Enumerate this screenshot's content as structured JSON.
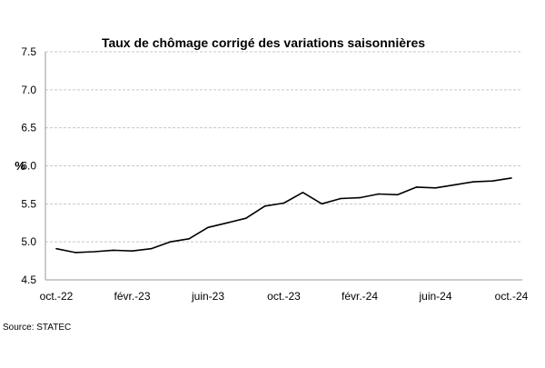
{
  "chart_data": {
    "type": "line",
    "title": "Taux de chômage corrigé des variations saisonnières",
    "ylabel": "%",
    "xlabel": "",
    "ylim": [
      4.5,
      7.5
    ],
    "yticks": [
      "4.5",
      "5.0",
      "5.5",
      "6.0",
      "6.5",
      "7.0",
      "7.5"
    ],
    "xtick_labels": [
      "oct.-22",
      "févr.-23",
      "juin-23",
      "oct.-23",
      "févr.-24",
      "juin-24",
      "oct.-24"
    ],
    "grid": "horizontal dashed",
    "x": [
      "oct.-22",
      "nov.-22",
      "déc.-22",
      "janv.-23",
      "févr.-23",
      "mars-23",
      "avr.-23",
      "mai-23",
      "juin-23",
      "juil.-23",
      "août-23",
      "sept.-23",
      "oct.-23",
      "nov.-23",
      "déc.-23",
      "janv.-24",
      "févr.-24",
      "mars-24",
      "avr.-24",
      "mai-24",
      "juin-24",
      "juil.-24",
      "août-24",
      "sept.-24",
      "oct.-24"
    ],
    "series": [
      {
        "values": [
          4.91,
          4.86,
          4.87,
          4.89,
          4.88,
          4.91,
          5.0,
          5.04,
          5.19,
          5.25,
          5.31,
          5.47,
          5.51,
          5.65,
          5.5,
          5.57,
          5.58,
          5.63,
          5.62,
          5.72,
          5.71,
          5.75,
          5.79,
          5.8,
          5.84
        ],
        "color": "#000000"
      }
    ]
  },
  "source": "Source: STATEC"
}
